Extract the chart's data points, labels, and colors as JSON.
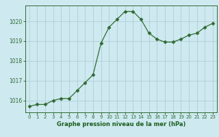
{
  "x": [
    0,
    1,
    2,
    3,
    4,
    5,
    6,
    7,
    8,
    9,
    10,
    11,
    12,
    13,
    14,
    15,
    16,
    17,
    18,
    19,
    20,
    21,
    22,
    23
  ],
  "y": [
    1015.7,
    1015.8,
    1015.8,
    1016.0,
    1016.1,
    1016.1,
    1016.5,
    1016.9,
    1017.3,
    1018.9,
    1019.7,
    1020.1,
    1020.5,
    1020.5,
    1020.1,
    1019.4,
    1019.1,
    1018.95,
    1018.95,
    1019.1,
    1019.3,
    1019.4,
    1019.7,
    1019.9
  ],
  "line_color": "#2d6a2d",
  "marker": "D",
  "marker_size": 2.5,
  "bg_color": "#cee9f0",
  "grid_color": "#b0cdd8",
  "xlabel": "Graphe pression niveau de la mer (hPa)",
  "xlabel_color": "#1a5c1a",
  "tick_color": "#2d6a2d",
  "axis_color": "#2d6a2d",
  "ylim": [
    1015.4,
    1020.8
  ],
  "xlim": [
    -0.5,
    23.5
  ],
  "yticks": [
    1016,
    1017,
    1018,
    1019,
    1020
  ],
  "xticks": [
    0,
    1,
    2,
    3,
    4,
    5,
    6,
    7,
    8,
    9,
    10,
    11,
    12,
    13,
    14,
    15,
    16,
    17,
    18,
    19,
    20,
    21,
    22,
    23
  ],
  "xtick_labels": [
    "0",
    "1",
    "2",
    "3",
    "4",
    "5",
    "6",
    "7",
    "8",
    "9",
    "10",
    "11",
    "12",
    "13",
    "14",
    "15",
    "16",
    "17",
    "18",
    "19",
    "20",
    "21",
    "22",
    "23"
  ],
  "xtick_fontsize": 5.0,
  "ytick_fontsize": 5.5,
  "xlabel_fontsize": 6.0
}
